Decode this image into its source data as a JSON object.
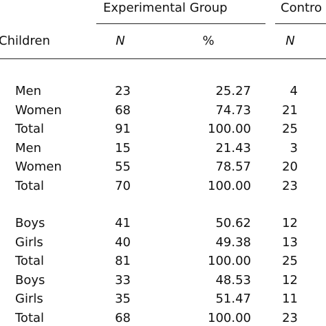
{
  "header": {
    "group_1": "Experimental Group",
    "group_2": "Contro",
    "row_label": "Children",
    "columns": [
      "N",
      "%",
      "N"
    ]
  },
  "table": {
    "sections": [
      {
        "rows": [
          [
            "Men",
            "23",
            "25.27",
            "4"
          ],
          [
            "Women",
            "68",
            "74.73",
            "21"
          ],
          [
            "Total",
            "91",
            "100.00",
            "25"
          ],
          [
            "Men",
            "15",
            "21.43",
            "3"
          ],
          [
            "Women",
            "55",
            "78.57",
            "20"
          ],
          [
            "Total",
            "70",
            "100.00",
            "23"
          ]
        ]
      },
      {
        "rows": [
          [
            "Boys",
            "41",
            "50.62",
            "12"
          ],
          [
            "Girls",
            "40",
            "49.38",
            "13"
          ],
          [
            "Total",
            "81",
            "100.00",
            "25"
          ],
          [
            "Boys",
            "33",
            "48.53",
            "12"
          ],
          [
            "Girls",
            "35",
            "51.47",
            "11"
          ],
          [
            "Total",
            "68",
            "100.00",
            "23"
          ]
        ]
      }
    ]
  }
}
